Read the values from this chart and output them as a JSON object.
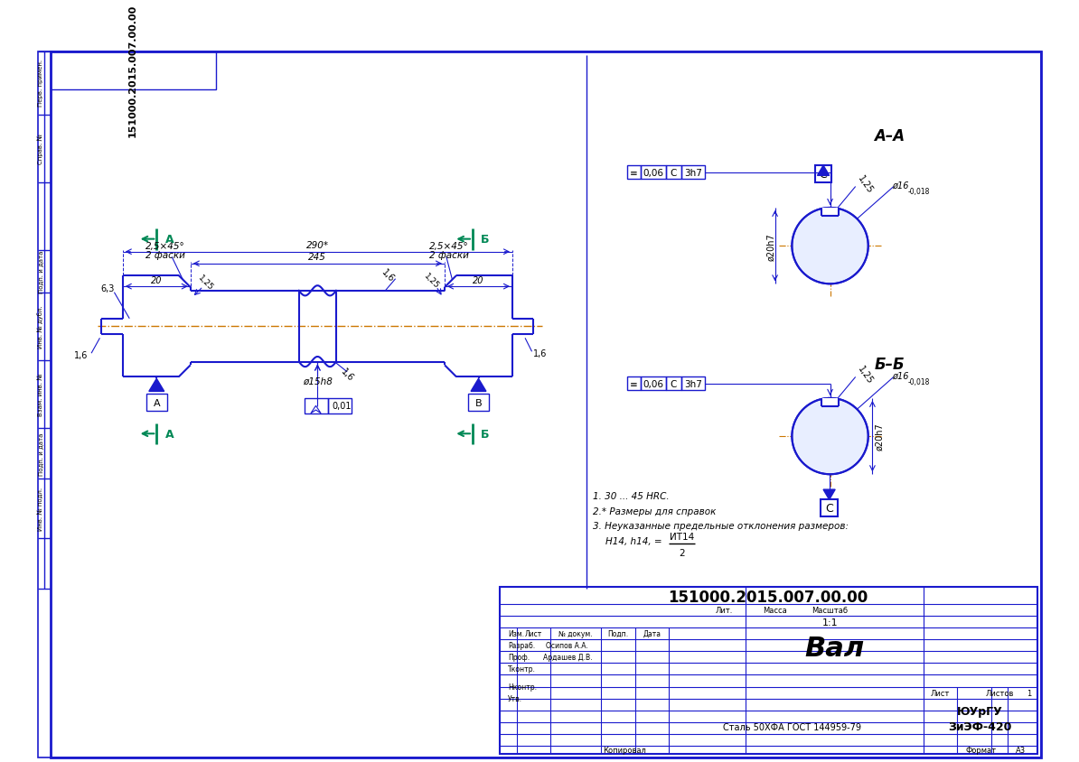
{
  "bg_color": "#ffffff",
  "bc": "#1a1acd",
  "lc": "#1a1acd",
  "gc": "#008855",
  "title_doc": "151000.2015.007.00.00",
  "part_name": "Вал",
  "material": "Сталь 50ХФА ГОСТ 144959-79",
  "scale": "1:1",
  "university": "ЮУрГУ",
  "department": "ЗиЭФ-420",
  "razrab": "Осипов А.А.",
  "prof": "Ардашев Д.В.",
  "format": "А3"
}
